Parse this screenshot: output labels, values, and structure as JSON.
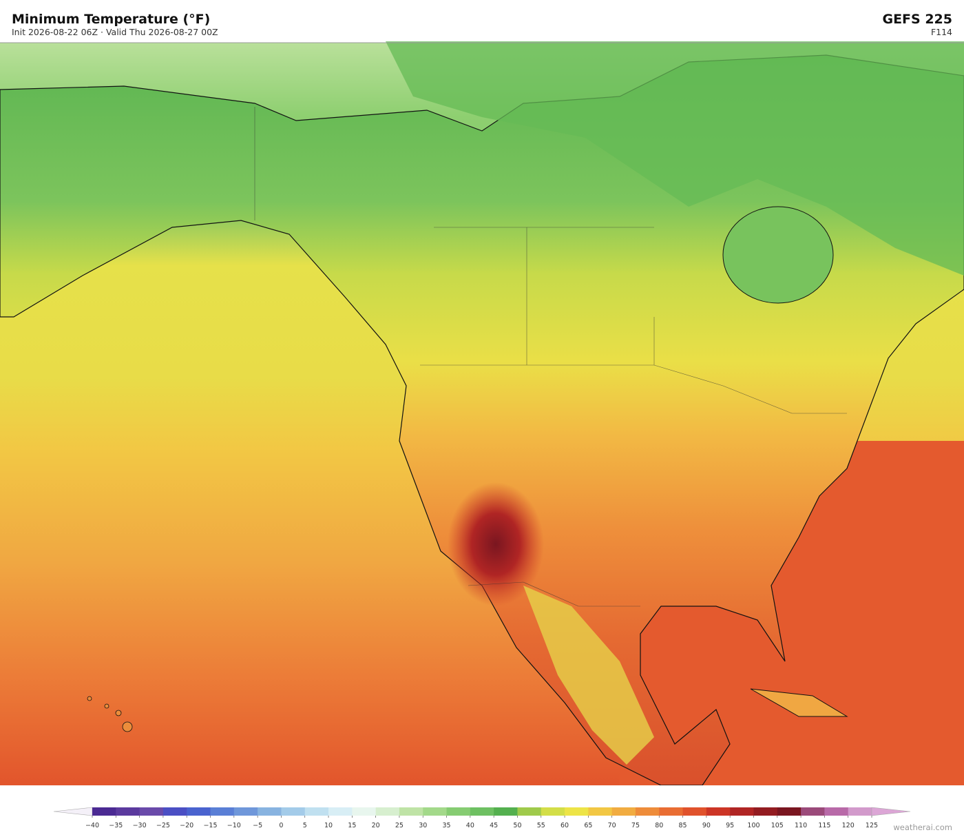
{
  "header": {
    "title": "Minimum Temperature  (°F)",
    "subtitle": "Init 2026-08-22 06Z  ·  Valid Thu 2026-08-27 00Z",
    "model": "GEFS  225",
    "forecast_hour": "F114"
  },
  "colorbar": {
    "ticks": [
      {
        "value": -40,
        "label": "−40"
      },
      {
        "value": -35,
        "label": "−35"
      },
      {
        "value": -30,
        "label": "−30"
      },
      {
        "value": -25,
        "label": "−25"
      },
      {
        "value": -20,
        "label": "−20"
      },
      {
        "value": -15,
        "label": "−15"
      },
      {
        "value": -10,
        "label": "−10"
      },
      {
        "value": -5,
        "label": "−5"
      },
      0,
      5,
      10,
      15,
      20,
      25,
      30,
      35,
      40,
      45,
      50,
      55,
      60,
      65,
      70,
      75,
      80,
      85,
      90,
      95,
      100,
      105,
      110,
      115,
      120,
      125
    ],
    "colors": [
      "#4b2a93",
      "#5b3a9e",
      "#6a4aaa",
      "#4b4fc4",
      "#4a63cf",
      "#5a7fd6",
      "#6f97da",
      "#88b3e0",
      "#a3cbe9",
      "#c0e0f0",
      "#d8eef5",
      "#e8f6ee",
      "#d7efcf",
      "#bfe3a6",
      "#a3d98a",
      "#86cc72",
      "#6ec062",
      "#54b04f",
      "#9fca4b",
      "#d3de48",
      "#ede447",
      "#f2c744",
      "#f1ac41",
      "#ee8c3a",
      "#e96d33",
      "#e0522c",
      "#cc3526",
      "#b02524",
      "#931c21",
      "#7a1620",
      "#9b4a7a",
      "#b86aa8",
      "#d29acb"
    ],
    "under_color": "#f4f0f8",
    "over_color": "#dca6d6"
  },
  "watermark": "weatherai.com"
}
